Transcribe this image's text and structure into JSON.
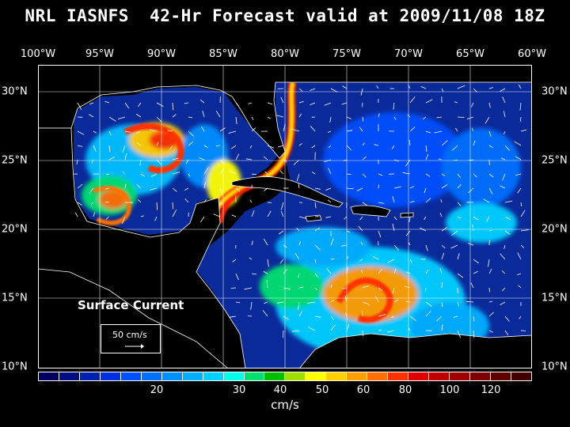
{
  "title": "NRL IASNFS  42-Hr Forecast valid at 2009/11/08 18Z",
  "lon_labels": [
    "100°W",
    "95°W",
    "90°W",
    "85°W",
    "80°W",
    "75°W",
    "70°W",
    "65°W",
    "60°W"
  ],
  "lat_labels": [
    "30°N",
    "25°N",
    "20°N",
    "15°N",
    "10°N"
  ],
  "legend": {
    "title": "Surface Current",
    "scale_label": "50 cm/s"
  },
  "colorbar": {
    "ticks": [
      "20",
      "30",
      "40",
      "50",
      "60",
      "80",
      "100",
      "120"
    ],
    "units": "cm/s",
    "colors": [
      "#000060",
      "#001080",
      "#0020b0",
      "#0030e0",
      "#0050ff",
      "#0070ff",
      "#0090ff",
      "#00b0ff",
      "#00d0ff",
      "#00ffe8",
      "#00e070",
      "#00c000",
      "#a0e000",
      "#ffff00",
      "#ffd000",
      "#ffa000",
      "#ff7000",
      "#ff3000",
      "#e00000",
      "#c00000",
      "#a00000",
      "#800000",
      "#600000",
      "#400000"
    ]
  },
  "colors": {
    "ocean": "#000a6a",
    "land": "#000000",
    "coast": "#ffffff",
    "slow": "#0040ff",
    "fast": "#ff2000"
  }
}
